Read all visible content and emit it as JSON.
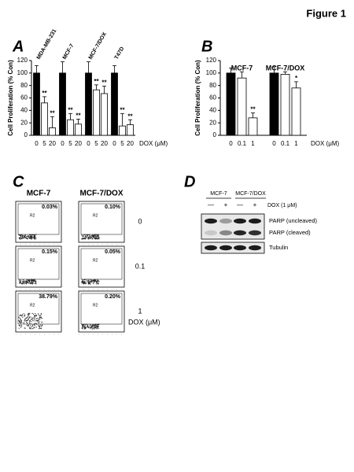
{
  "figure_title": "Figure 1",
  "chart_data": [
    {
      "type": "bar",
      "panel": "A",
      "ylabel": "Cell Proliferation (% Con)",
      "xlabel": "DOX (μM)",
      "ylim": [
        0,
        120
      ],
      "yticks": [
        0,
        20,
        40,
        60,
        80,
        100,
        120
      ],
      "colors": [
        "#000000",
        "#ffffff",
        "#ffffff"
      ],
      "groups": [
        {
          "name": "MDA-MB-231",
          "categories": [
            "0",
            "5",
            "20"
          ],
          "values": [
            100,
            52,
            12
          ],
          "errors": [
            12,
            10,
            18
          ],
          "annotations": [
            null,
            "**",
            "**"
          ]
        },
        {
          "name": "MCF-7",
          "categories": [
            "0",
            "5",
            "20"
          ],
          "values": [
            100,
            25,
            18
          ],
          "errors": [
            18,
            10,
            8
          ],
          "annotations": [
            null,
            "**",
            "**"
          ]
        },
        {
          "name": "MCF-7/DOX",
          "categories": [
            "0",
            "5",
            "20"
          ],
          "values": [
            100,
            73,
            67
          ],
          "errors": [
            18,
            8,
            12
          ],
          "annotations": [
            null,
            "**",
            "**"
          ]
        },
        {
          "name": "T47D",
          "categories": [
            "0",
            "5",
            "20"
          ],
          "values": [
            100,
            15,
            17
          ],
          "errors": [
            12,
            20,
            8
          ],
          "annotations": [
            null,
            "**",
            "**"
          ]
        }
      ]
    },
    {
      "type": "bar",
      "panel": "B",
      "ylabel": "Cell Proliferation (% Con)",
      "xlabel": "DOX (μM)",
      "ylim": [
        0,
        120
      ],
      "yticks": [
        0,
        20,
        40,
        60,
        80,
        100,
        120
      ],
      "colors": [
        "#000000",
        "#ffffff",
        "#ffffff"
      ],
      "groups": [
        {
          "name": "MCF-7",
          "categories": [
            "0",
            "0.1",
            "1"
          ],
          "values": [
            100,
            92,
            28
          ],
          "errors": [
            8,
            10,
            8
          ],
          "annotations": [
            null,
            null,
            "**"
          ]
        },
        {
          "name": "MCF-7/DOX",
          "categories": [
            "0",
            "0.1",
            "1"
          ],
          "values": [
            100,
            98,
            76
          ],
          "errors": [
            10,
            4,
            10
          ],
          "annotations": [
            null,
            null,
            "*"
          ]
        }
      ]
    }
  ],
  "panel_c": {
    "panel": "C",
    "columns": [
      "MCF-7",
      "MCF-7/DOX"
    ],
    "gate_label": "R2",
    "unit": "DOX (μM)",
    "rows": [
      {
        "label": "0",
        "percents": [
          "0.03%",
          "0.10%"
        ]
      },
      {
        "label": "0.1",
        "percents": [
          "0.15%",
          "0.05%"
        ]
      },
      {
        "label": "1",
        "percents": [
          "38.79%",
          "0.20%"
        ]
      }
    ]
  },
  "panel_d": {
    "panel": "D",
    "groups": [
      "MCF-7",
      "MCF-7/DOX"
    ],
    "lanes": [
      "—",
      "+",
      "—",
      "+"
    ],
    "treatment": "DOX (1 μM)",
    "bands": [
      "PARP (uncleaved)",
      "PARP (cleaved)",
      "Tubulin"
    ]
  }
}
